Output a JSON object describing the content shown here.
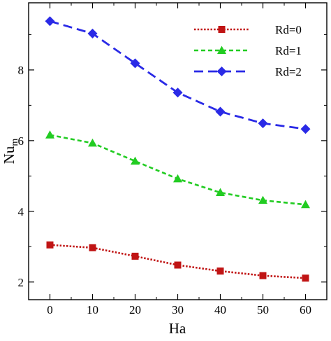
{
  "chart_data": {
    "type": "line",
    "title": "",
    "xlabel": "Ha",
    "ylabel": {
      "main": "Nu",
      "sub": "m"
    },
    "x": [
      0,
      10,
      20,
      30,
      40,
      50,
      60
    ],
    "xticks": [
      0,
      10,
      20,
      30,
      40,
      50,
      60
    ],
    "yticks": [
      2,
      4,
      6,
      8
    ],
    "xlim": [
      -5,
      65
    ],
    "ylim": [
      1.5,
      9.9
    ],
    "grid": false,
    "legend_position": "top-right",
    "series": [
      {
        "name": "Rd=0",
        "values": [
          3.05,
          2.97,
          2.73,
          2.48,
          2.31,
          2.18,
          2.11
        ],
        "color": "#c01414",
        "marker": "square",
        "dash": "dotted"
      },
      {
        "name": "Rd=1",
        "values": [
          6.16,
          5.93,
          5.42,
          4.92,
          4.53,
          4.31,
          4.19
        ],
        "color": "#22cc22",
        "marker": "triangle",
        "dash": "short-dash"
      },
      {
        "name": "Rd=2",
        "values": [
          9.38,
          9.03,
          8.19,
          7.36,
          6.82,
          6.49,
          6.33
        ],
        "color": "#2a2ae6",
        "marker": "diamond",
        "dash": "long-dash"
      }
    ]
  }
}
